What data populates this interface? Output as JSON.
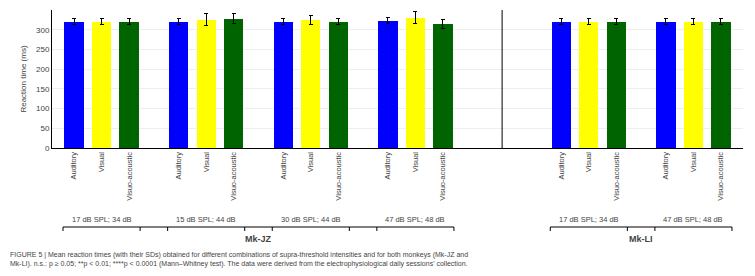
{
  "chart_data": {
    "type": "bar",
    "categories": [
      "Auditory",
      "Visual",
      "Visuo-acoustic",
      "Auditory",
      "Visual",
      "Visuo-acoustic",
      "Auditory",
      "Visual",
      "Visuo-acoustic",
      "Auditory",
      "Visual",
      "Visuo-acoustic",
      "Auditory",
      "Visual",
      "Visuo-acoustic",
      "Auditory",
      "Visual",
      "Visuo-acoustic"
    ],
    "values": [
      320,
      320,
      320,
      320,
      325,
      328,
      320,
      325,
      320,
      323,
      330,
      315,
      320,
      320,
      320,
      320,
      320,
      320
    ],
    "errors": [
      8,
      8,
      8,
      8,
      15,
      12,
      8,
      12,
      8,
      8,
      15,
      12,
      8,
      8,
      8,
      8,
      8,
      8
    ],
    "colors": [
      "#0000FF",
      "#FFFF00",
      "#006400",
      "#0000FF",
      "#FFFF00",
      "#006400",
      "#0000FF",
      "#FFFF00",
      "#006400",
      "#0000FF",
      "#FFFF00",
      "#006400",
      "#0000FF",
      "#FFFF00",
      "#006400",
      "#0000FF",
      "#FFFF00",
      "#006400"
    ],
    "groups": [
      "17 dB SPL; 34 dB",
      "17 dB SPL; 34 dB",
      "17 dB SPL; 34 dB",
      "15 dB SPL; 44 dB",
      "15 dB SPL; 44 dB",
      "15 dB SPL; 44 dB",
      "30 dB SPL; 44 dB",
      "30 dB SPL; 44 dB",
      "30 dB SPL; 44 dB",
      "47 dB SPL; 48 dB",
      "47 dB SPL; 48 dB",
      "47 dB SPL; 48 dB",
      "17 dB SPL; 34 dB",
      "17 dB SPL; 34 dB",
      "17 dB SPL; 34 dB",
      "47 dB SPL; 48 dB",
      "47 dB SPL; 48 dB",
      "47 dB SPL; 48 dB"
    ],
    "monkeys": [
      "Mk-JZ",
      "Mk-JZ",
      "Mk-JZ",
      "Mk-JZ",
      "Mk-JZ",
      "Mk-JZ",
      "Mk-JZ",
      "Mk-JZ",
      "Mk-JZ",
      "Mk-JZ",
      "Mk-JZ",
      "Mk-JZ",
      "Mk-LI",
      "Mk-LI",
      "Mk-LI",
      "Mk-LI",
      "Mk-LI",
      "Mk-LI"
    ],
    "ylabel": "Reaction time (ms)",
    "ylim": [
      0,
      350
    ],
    "yticks": [
      0,
      50,
      100,
      150,
      200,
      250,
      300
    ],
    "grid": true,
    "caption": "FIGURE 5 | Mean reaction times (with their SDs) obtained for different combinations of supra-threshold intensities and for both monkeys (Mk-JZ and\nMk-LI). n.s.: p ≥ 0.05; **p < 0.01; ****p < 0.0001 (Mann–Whitney test). The data were derived from the electrophysiological daily sessions' collection."
  }
}
